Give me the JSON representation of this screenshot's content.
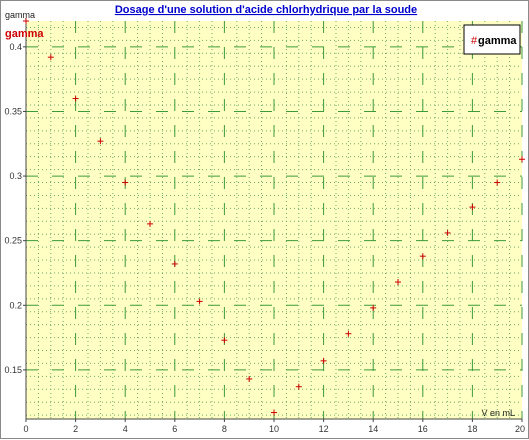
{
  "chart_data": {
    "type": "scatter",
    "title": "Dosage d'une solution d'acide chlorhydrique par la soude",
    "xlabel": "V en mL",
    "ylabel": "gamma",
    "xlim": [
      0,
      20
    ],
    "ylim": [
      0.112,
      0.42
    ],
    "x_ticks": [
      "0",
      "2",
      "4",
      "6",
      "8",
      "10",
      "12",
      "14",
      "16",
      "18",
      "20"
    ],
    "y_ticks": [
      "0.15",
      "0.2",
      "0.25",
      "0.3",
      "0.35",
      "0.4"
    ],
    "grid": true,
    "legend_position": "top-right",
    "series": [
      {
        "name": "gamma",
        "color": "#cc0000",
        "marker": "plus",
        "x": [
          0,
          1,
          2,
          3,
          4,
          5,
          6,
          7,
          8,
          9,
          10,
          11,
          12,
          13,
          14,
          15,
          16,
          17,
          18,
          19,
          20
        ],
        "y": [
          0.42,
          0.392,
          0.36,
          0.327,
          0.295,
          0.263,
          0.232,
          0.203,
          0.173,
          0.143,
          0.117,
          0.137,
          0.157,
          0.178,
          0.198,
          0.218,
          0.238,
          0.256,
          0.276,
          0.295,
          0.313
        ]
      }
    ]
  },
  "colors": {
    "plot_background": "#ffffc4",
    "grid_major": "#3c9a3c",
    "grid_minor": "#6aaa6a",
    "title": "#0000cc",
    "series": "#cc0000"
  }
}
